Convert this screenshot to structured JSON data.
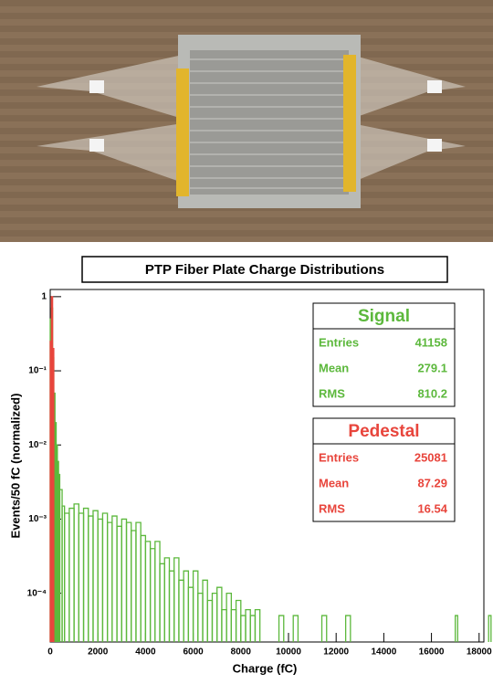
{
  "chart_data": {
    "type": "histogram",
    "title": "PTP Fiber Plate Charge Distributions",
    "x_label": "Charge (fC)",
    "y_label": "Events/50 fC (normalized)",
    "log_y": true,
    "xlim": [
      0,
      18200
    ],
    "ylim": [
      2.2e-05,
      1.25
    ],
    "xticks": [
      0,
      2000,
      4000,
      6000,
      8000,
      10000,
      12000,
      14000,
      16000,
      18000
    ],
    "yticks": [
      1,
      {
        "value": 0.1,
        "label": "10⁻¹"
      },
      {
        "value": 0.01,
        "label": "10⁻²"
      },
      {
        "value": 0.001,
        "label": "10⁻³"
      },
      {
        "value": 0.0001,
        "label": "10⁻⁴"
      }
    ],
    "bins": [
      0,
      50,
      100,
      150,
      200,
      250,
      300,
      350,
      400,
      500,
      600,
      800,
      1000,
      1200,
      1400,
      1600,
      1800,
      2000,
      2200,
      2400,
      2600,
      2800,
      3000,
      3200,
      3400,
      3600,
      3800,
      4000,
      4200,
      4400,
      4600,
      4800,
      5000,
      5200,
      5400,
      5600,
      5800,
      6000,
      6200,
      6400,
      6600,
      6800,
      7000,
      7200,
      7400,
      7600,
      7800,
      8000,
      8200,
      8400,
      8600,
      8800,
      9600,
      9800,
      10200,
      10400,
      11400,
      11600,
      12400,
      12600,
      17000,
      17100,
      18400,
      18500
    ],
    "series": [
      {
        "name": "Signal",
        "color": "#5cb83c",
        "values": [
          0.5,
          0.7,
          0.15,
          0.05,
          0.02,
          0.01,
          0.006,
          0.004,
          0.0025,
          0.0015,
          0.0012,
          0.0014,
          0.0016,
          0.0012,
          0.0014,
          0.0011,
          0.0013,
          0.001,
          0.0012,
          0.0009,
          0.0011,
          0.0008,
          0.001,
          0.0009,
          0.0007,
          0.0009,
          0.0006,
          0.0005,
          0.0004,
          0.0005,
          0.00025,
          0.0003,
          0.0002,
          0.0003,
          0.00015,
          0.0002,
          0.00012,
          0.0002,
          0.0001,
          0.00015,
          8e-05,
          0.0001,
          0.00012,
          6e-05,
          0.0001,
          6e-05,
          8e-05,
          5e-05,
          6e-05,
          5e-05,
          6e-05,
          null,
          5e-05,
          null,
          5e-05,
          null,
          5e-05,
          null,
          5e-05,
          null,
          5e-05,
          null,
          5e-05
        ]
      },
      {
        "name": "Pedestal",
        "color": "#e8453c",
        "values": [
          0.25,
          1.0,
          0.2,
          null,
          null,
          null,
          null,
          null,
          null,
          null,
          null,
          null,
          null,
          null,
          null,
          null,
          null,
          null,
          null,
          null,
          null,
          null,
          null,
          null,
          null,
          null,
          null,
          null,
          null,
          null,
          null,
          null,
          null,
          null,
          null,
          null,
          null,
          null,
          null,
          null,
          null,
          null,
          null,
          null,
          null,
          null,
          null,
          null,
          null,
          null,
          null,
          null,
          null,
          null,
          null,
          null,
          null,
          null,
          null,
          null,
          null,
          null,
          null
        ]
      }
    ],
    "stat_boxes": [
      {
        "title": "Signal",
        "color": "#5cb83c",
        "rows": [
          [
            "Entries",
            "41158"
          ],
          [
            "Mean",
            "279.1"
          ],
          [
            "RMS",
            "810.2"
          ]
        ]
      },
      {
        "title": "Pedestal",
        "color": "#e8453c",
        "rows": [
          [
            "Entries",
            "25081"
          ],
          [
            "Mean",
            "87.29"
          ],
          [
            "RMS",
            "16.54"
          ]
        ]
      }
    ]
  }
}
